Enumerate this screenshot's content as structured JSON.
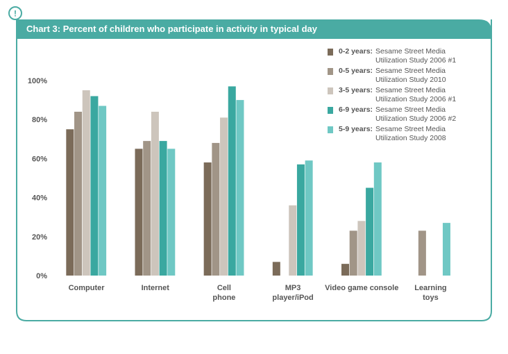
{
  "chart_data": {
    "type": "bar",
    "title": "Chart 3: Percent of children who participate in activity in typical day",
    "categories": [
      "Computer",
      "Internet",
      "Cell\nphone",
      "MP3\nplayer/iPod",
      "Video game console",
      "Learning\ntoys"
    ],
    "series": [
      {
        "name": "0-2 years:",
        "source": "Sesame Street Media Utilization Study 2006 #1",
        "color": "#7b6b59",
        "values": [
          75,
          65,
          58,
          7,
          6,
          null
        ]
      },
      {
        "name": "0-5 years:",
        "source": "Sesame Street Media Utilization Study 2010",
        "color": "#a19587",
        "values": [
          84,
          69,
          68,
          null,
          23,
          23
        ]
      },
      {
        "name": "3-5 years:",
        "source": "Sesame Street Media Utilization Study 2006 #1",
        "color": "#cdc5bc",
        "values": [
          95,
          84,
          81,
          36,
          28,
          null
        ]
      },
      {
        "name": "6-9 years:",
        "source": "Sesame Street Media Utilization Study 2006 #2",
        "color": "#3aa8a0",
        "values": [
          92,
          69,
          97,
          57,
          45,
          null
        ]
      },
      {
        "name": "5-9 years:",
        "source": "Sesame Street Media Utilization Study 2008",
        "color": "#6fc8c4",
        "values": [
          87,
          65,
          90,
          59,
          58,
          27
        ]
      }
    ],
    "ylim": [
      0,
      100
    ],
    "yticks": [
      {
        "value": 0,
        "label": "0%"
      },
      {
        "value": 20,
        "label": "20%"
      },
      {
        "value": 40,
        "label": "40%"
      },
      {
        "value": 60,
        "label": "60%"
      },
      {
        "value": 80,
        "label": "80%"
      },
      {
        "value": 100,
        "label": "100%"
      }
    ],
    "grid": false
  }
}
